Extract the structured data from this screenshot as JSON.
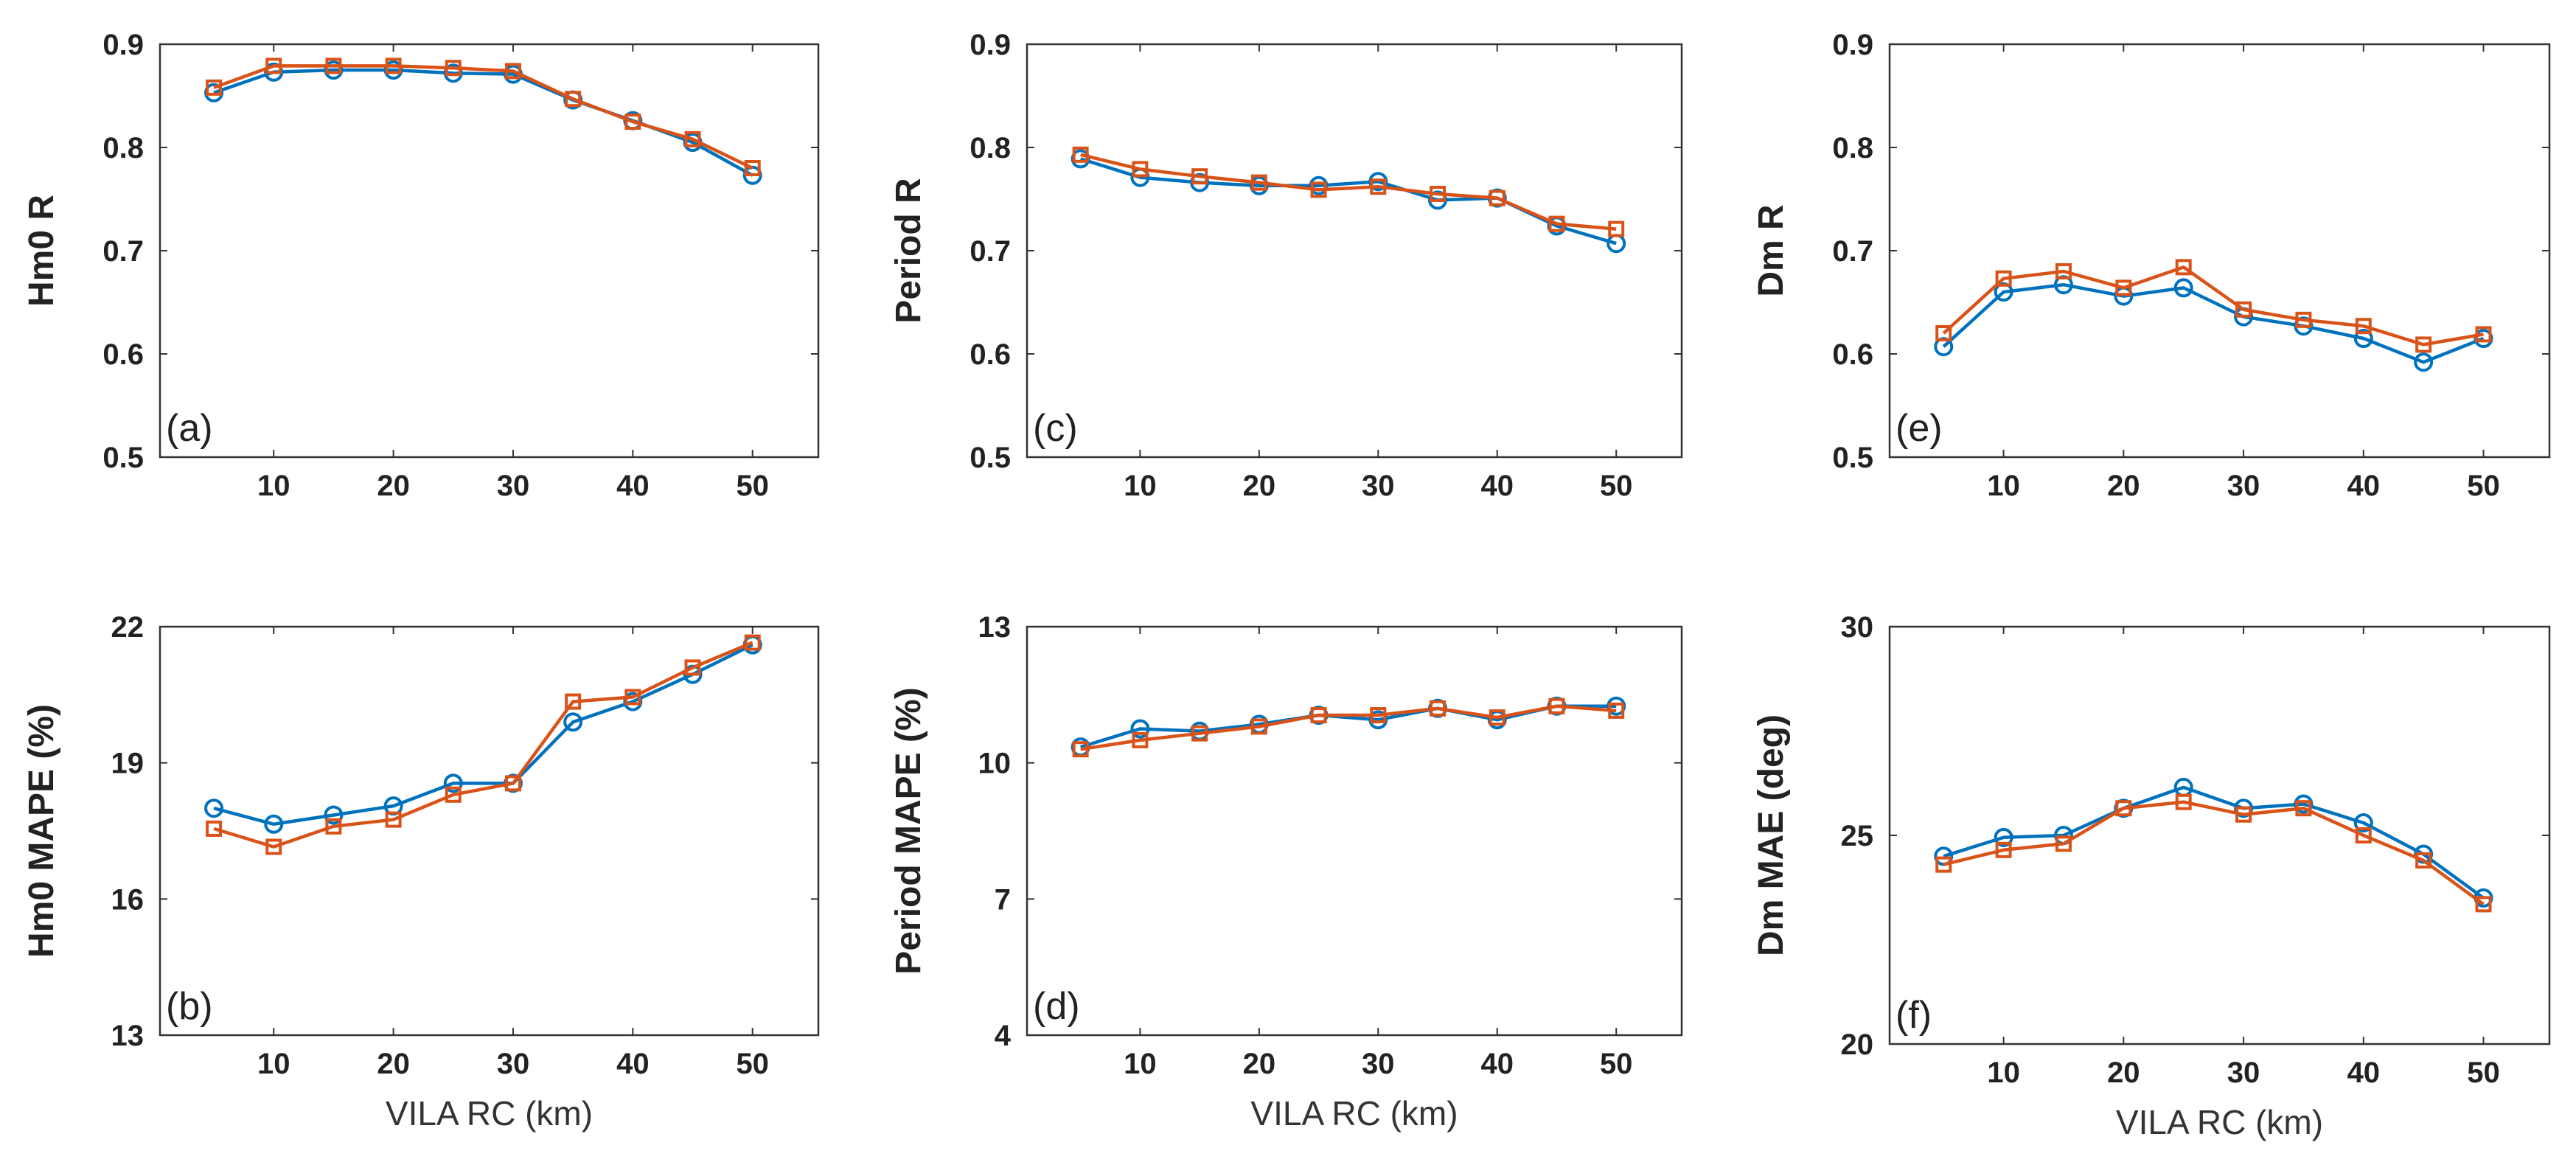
{
  "colors": {
    "series_a": "#0072BD",
    "series_b": "#D95319",
    "axis": "#333333"
  },
  "chart_data": [
    {
      "type": "line",
      "panel_tag": "(a)",
      "ylabel": "Hm0 R",
      "xlabel": "",
      "ylim": [
        0.5,
        0.9
      ],
      "yticks": [
        "0.5",
        "0.6",
        "0.7",
        "0.8",
        "0.9"
      ],
      "xticks": [
        "10",
        "20",
        "30",
        "40",
        "50"
      ],
      "x": [
        5,
        10,
        15,
        20,
        25,
        30,
        35,
        40,
        45,
        50
      ],
      "series": [
        {
          "name": "circle",
          "marker": "circle",
          "values": [
            0.853,
            0.873,
            0.875,
            0.875,
            0.872,
            0.871,
            0.846,
            0.826,
            0.805,
            0.773
          ]
        },
        {
          "name": "square",
          "marker": "square",
          "values": [
            0.858,
            0.879,
            0.879,
            0.879,
            0.877,
            0.874,
            0.847,
            0.825,
            0.808,
            0.78
          ]
        }
      ]
    },
    {
      "type": "line",
      "panel_tag": "(c)",
      "ylabel": "Period R",
      "xlabel": "",
      "ylim": [
        0.5,
        0.9
      ],
      "yticks": [
        "0.5",
        "0.6",
        "0.7",
        "0.8",
        "0.9"
      ],
      "xticks": [
        "10",
        "20",
        "30",
        "40",
        "50"
      ],
      "x": [
        5,
        10,
        15,
        20,
        25,
        30,
        35,
        40,
        45,
        50
      ],
      "series": [
        {
          "name": "circle",
          "marker": "circle",
          "values": [
            0.789,
            0.771,
            0.766,
            0.763,
            0.763,
            0.767,
            0.749,
            0.751,
            0.724,
            0.707
          ]
        },
        {
          "name": "square",
          "marker": "square",
          "values": [
            0.793,
            0.779,
            0.772,
            0.766,
            0.759,
            0.762,
            0.755,
            0.751,
            0.726,
            0.721
          ]
        }
      ]
    },
    {
      "type": "line",
      "panel_tag": "(e)",
      "ylabel": "Dm R",
      "xlabel": "",
      "ylim": [
        0.5,
        0.9
      ],
      "yticks": [
        "0.5",
        "0.6",
        "0.7",
        "0.8",
        "0.9"
      ],
      "xticks": [
        "10",
        "20",
        "30",
        "40",
        "50"
      ],
      "x": [
        5,
        10,
        15,
        20,
        25,
        30,
        35,
        40,
        45,
        50
      ],
      "series": [
        {
          "name": "circle",
          "marker": "circle",
          "values": [
            0.607,
            0.66,
            0.667,
            0.656,
            0.664,
            0.636,
            0.627,
            0.615,
            0.592,
            0.615
          ]
        },
        {
          "name": "square",
          "marker": "square",
          "values": [
            0.62,
            0.673,
            0.68,
            0.664,
            0.684,
            0.643,
            0.633,
            0.627,
            0.609,
            0.619
          ]
        }
      ]
    },
    {
      "type": "line",
      "panel_tag": "(b)",
      "ylabel": "Hm0 MAPE (%)",
      "xlabel": "VILA RC (km)",
      "ylim": [
        13,
        22
      ],
      "yticks": [
        "13",
        "16",
        "19",
        "22"
      ],
      "xticks": [
        "10",
        "20",
        "30",
        "40",
        "50"
      ],
      "x": [
        5,
        10,
        15,
        20,
        25,
        30,
        35,
        40,
        45,
        50
      ],
      "series": [
        {
          "name": "circle",
          "marker": "circle",
          "values": [
            18.0,
            17.65,
            17.85,
            18.05,
            18.55,
            18.55,
            19.9,
            20.35,
            20.95,
            21.6
          ]
        },
        {
          "name": "square",
          "marker": "square",
          "values": [
            17.55,
            17.15,
            17.6,
            17.75,
            18.3,
            18.55,
            20.35,
            20.45,
            21.1,
            21.65
          ]
        }
      ]
    },
    {
      "type": "line",
      "panel_tag": "(d)",
      "ylabel": "Period MAPE (%)",
      "xlabel": "VILA RC (km)",
      "ylim": [
        4,
        13
      ],
      "yticks": [
        "4",
        "7",
        "10",
        "13"
      ],
      "xticks": [
        "10",
        "20",
        "30",
        "40",
        "50"
      ],
      "x": [
        5,
        10,
        15,
        20,
        25,
        30,
        35,
        40,
        45,
        50
      ],
      "series": [
        {
          "name": "circle",
          "marker": "circle",
          "values": [
            10.35,
            10.75,
            10.7,
            10.85,
            11.05,
            10.95,
            11.2,
            10.95,
            11.25,
            11.25
          ]
        },
        {
          "name": "square",
          "marker": "square",
          "values": [
            10.3,
            10.5,
            10.65,
            10.8,
            11.05,
            11.05,
            11.2,
            11.0,
            11.25,
            11.15
          ]
        }
      ]
    },
    {
      "type": "line",
      "panel_tag": "(f)",
      "ylabel": "Dm MAE (deg)",
      "xlabel": "VILA RC (km)",
      "ylim": [
        20,
        30
      ],
      "yticks": [
        "20",
        "25",
        "30"
      ],
      "xticks": [
        "10",
        "20",
        "30",
        "40",
        "50"
      ],
      "x": [
        5,
        10,
        15,
        20,
        25,
        30,
        35,
        40,
        45,
        50
      ],
      "series": [
        {
          "name": "circle",
          "marker": "circle",
          "values": [
            24.5,
            24.95,
            25.0,
            25.65,
            26.15,
            25.65,
            25.75,
            25.3,
            24.55,
            23.5
          ]
        },
        {
          "name": "square",
          "marker": "square",
          "values": [
            24.3,
            24.65,
            24.8,
            25.65,
            25.8,
            25.5,
            25.65,
            25.0,
            24.4,
            23.35
          ]
        }
      ]
    }
  ]
}
